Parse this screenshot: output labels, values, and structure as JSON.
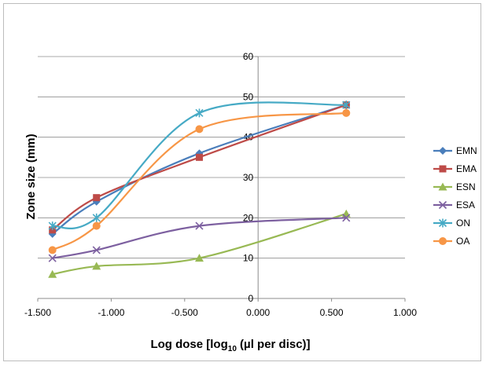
{
  "chart_data": {
    "type": "line",
    "title": "",
    "xlabel": "Log dose [log",
    "xlabel_sub": "10",
    "xlabel_tail": " (µl per disc)]",
    "ylabel": "Zone size (mm)",
    "xlim": [
      -1.5,
      1.0
    ],
    "ylim": [
      0,
      60
    ],
    "x_ticks": [
      "-1.500",
      "-1.000",
      "-0.500",
      "0.000",
      "0.500",
      "1.000"
    ],
    "x_tick_values": [
      -1.5,
      -1.0,
      -0.5,
      0.0,
      0.5,
      1.0
    ],
    "y_ticks": [
      "0",
      "10",
      "20",
      "30",
      "40",
      "50",
      "60"
    ],
    "y_tick_values": [
      0,
      10,
      20,
      30,
      40,
      50,
      60
    ],
    "grid": "horizontal",
    "legend_position": "right",
    "x": [
      -1.4,
      -1.1,
      -0.4,
      0.6
    ],
    "series": [
      {
        "name": "EMN",
        "values": [
          16,
          24,
          36,
          48
        ],
        "color": "#4a7ebb",
        "marker": "diamond"
      },
      {
        "name": "EMA",
        "values": [
          17,
          25,
          35,
          48
        ],
        "color": "#be4b48",
        "marker": "square"
      },
      {
        "name": "ESN",
        "values": [
          6,
          8,
          10,
          21
        ],
        "color": "#98b954",
        "marker": "triangle"
      },
      {
        "name": "ESA",
        "values": [
          10,
          12,
          18,
          20
        ],
        "color": "#7d60a0",
        "marker": "x"
      },
      {
        "name": "ON",
        "values": [
          18,
          20,
          46,
          48
        ],
        "color": "#46aac5",
        "marker": "star"
      },
      {
        "name": "OA",
        "values": [
          12,
          18,
          42,
          46
        ],
        "color": "#f79646",
        "marker": "circle"
      }
    ]
  }
}
